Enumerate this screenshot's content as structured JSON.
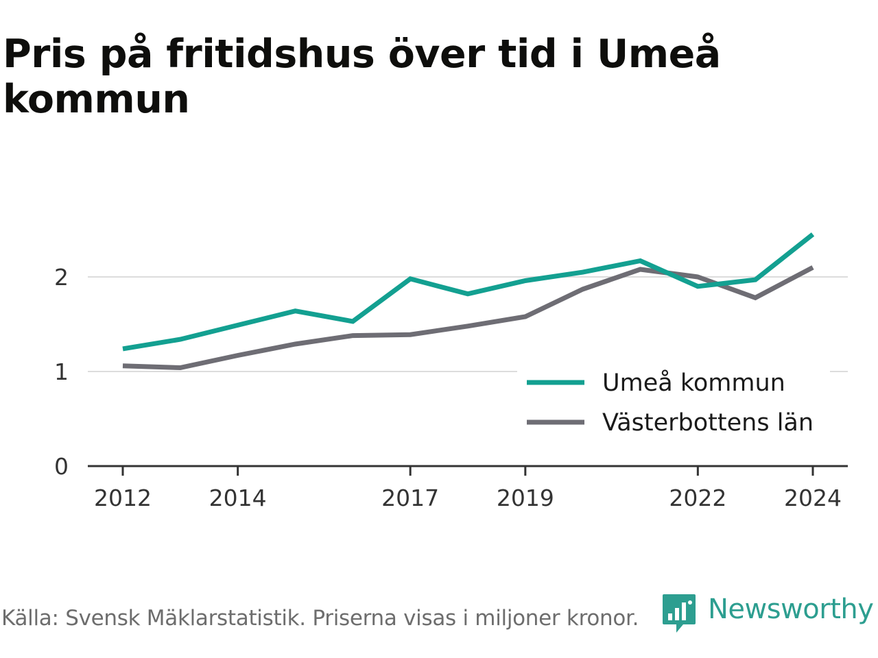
{
  "title": "Pris på fritidshus över tid i Umeå kommun",
  "footer": {
    "source": "Källa: Svensk Mäklarstatistik. Priserna visas i miljoner kronor.",
    "brand": "Newsworthy",
    "brand_color": "#2d9e90"
  },
  "chart_data": {
    "type": "line",
    "x": [
      2012,
      2013,
      2014,
      2015,
      2016,
      2017,
      2018,
      2019,
      2020,
      2021,
      2022,
      2023,
      2024
    ],
    "x_ticks": [
      "2012",
      "2014",
      "2017",
      "2019",
      "2022",
      "2024"
    ],
    "y_ticks": [
      "0",
      "1",
      "2"
    ],
    "ylim": [
      0,
      2.6
    ],
    "grid": true,
    "legend_position": "bottom-right",
    "series": [
      {
        "name": "Umeå kommun",
        "color": "#13a091",
        "values": [
          1.24,
          1.34,
          1.49,
          1.64,
          1.53,
          1.98,
          1.82,
          1.96,
          2.05,
          2.17,
          1.9,
          1.97,
          2.45
        ]
      },
      {
        "name": "Västerbottens län",
        "color": "#6e6d74",
        "values": [
          1.06,
          1.04,
          1.17,
          1.29,
          1.38,
          1.39,
          1.48,
          1.58,
          1.87,
          2.08,
          2.0,
          1.78,
          2.1
        ]
      }
    ]
  }
}
